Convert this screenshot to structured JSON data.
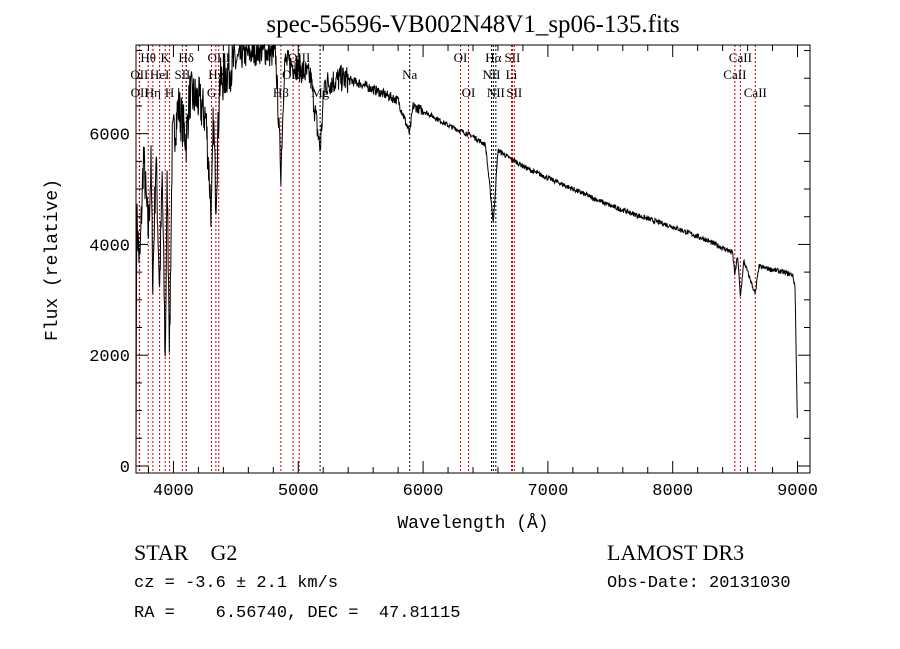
{
  "chart_data": {
    "type": "line",
    "title": "spec-56596-VB002N48V1_sp06-135.fits",
    "xlabel": "Wavelength (Å)",
    "ylabel": "Flux (relative)",
    "xlim": [
      3700,
      9100
    ],
    "ylim": [
      0,
      7600
    ],
    "xticks": [
      4000,
      5000,
      6000,
      7000,
      8000,
      9000
    ],
    "xtick_labels": [
      "4000",
      "5000",
      "6000",
      "7000",
      "8000",
      "9000"
    ],
    "yticks": [
      0,
      2000,
      4000,
      6000
    ],
    "ytick_labels": [
      "0",
      "2000",
      "4000",
      "6000"
    ],
    "grid": false,
    "series": [
      {
        "name": "spectrum",
        "color": "#000000",
        "points": [
          [
            3700,
            0
          ],
          [
            3705,
            4500
          ],
          [
            3730,
            3600
          ],
          [
            3760,
            5600
          ],
          [
            3798,
            4200
          ],
          [
            3820,
            5400
          ],
          [
            3835,
            3300
          ],
          [
            3860,
            5600
          ],
          [
            3889,
            3200
          ],
          [
            3910,
            5200
          ],
          [
            3934,
            1900
          ],
          [
            3950,
            5200
          ],
          [
            3969,
            2100
          ],
          [
            3990,
            5800
          ],
          [
            4040,
            6500
          ],
          [
            4102,
            5900
          ],
          [
            4130,
            6700
          ],
          [
            4200,
            6600
          ],
          [
            4260,
            6300
          ],
          [
            4305,
            4500
          ],
          [
            4320,
            6300
          ],
          [
            4340,
            4800
          ],
          [
            4370,
            6900
          ],
          [
            4450,
            7200
          ],
          [
            4550,
            7400
          ],
          [
            4700,
            7500
          ],
          [
            4820,
            7400
          ],
          [
            4861,
            5300
          ],
          [
            4890,
            7300
          ],
          [
            5000,
            7200
          ],
          [
            5100,
            7000
          ],
          [
            5175,
            5700
          ],
          [
            5210,
            6900
          ],
          [
            5350,
            7000
          ],
          [
            5500,
            6900
          ],
          [
            5650,
            6750
          ],
          [
            5800,
            6600
          ],
          [
            5893,
            6000
          ],
          [
            5920,
            6500
          ],
          [
            6050,
            6350
          ],
          [
            6200,
            6150
          ],
          [
            6300,
            6050
          ],
          [
            6400,
            5950
          ],
          [
            6500,
            5800
          ],
          [
            6563,
            4400
          ],
          [
            6600,
            5700
          ],
          [
            6700,
            5550
          ],
          [
            6850,
            5350
          ],
          [
            7000,
            5200
          ],
          [
            7250,
            4950
          ],
          [
            7500,
            4700
          ],
          [
            7750,
            4500
          ],
          [
            8000,
            4320
          ],
          [
            8250,
            4100
          ],
          [
            8480,
            3850
          ],
          [
            8498,
            3450
          ],
          [
            8520,
            3800
          ],
          [
            8542,
            3050
          ],
          [
            8570,
            3700
          ],
          [
            8662,
            3100
          ],
          [
            8690,
            3600
          ],
          [
            8850,
            3520
          ],
          [
            8960,
            3450
          ],
          [
            8980,
            3250
          ],
          [
            9000,
            600
          ]
        ]
      }
    ],
    "line_markers": [
      {
        "label": "Hθ",
        "wavelength": 3798,
        "row": 1,
        "color": "#cc0000"
      },
      {
        "label": "K",
        "wavelength": 3934,
        "row": 1,
        "color": "#cc0000"
      },
      {
        "label": "Hδ",
        "wavelength": 4102,
        "row": 1,
        "color": "#000000"
      },
      {
        "label": "OIII",
        "wavelength": 4363,
        "row": 1,
        "color": "#cc0000"
      },
      {
        "label": "OIII",
        "wavelength": 5007,
        "row": 1,
        "color": "#cc0000"
      },
      {
        "label": "OI",
        "wavelength": 6300,
        "row": 1,
        "color": "#cc0000"
      },
      {
        "label": "Hα",
        "wavelength": 6563,
        "row": 1,
        "color": "#000000"
      },
      {
        "label": "SII",
        "wavelength": 6716,
        "row": 1,
        "color": "#cc0000"
      },
      {
        "label": "CaII",
        "wavelength": 8542,
        "row": 1,
        "color": "#cc0000"
      },
      {
        "label": "OII",
        "wavelength": 3727,
        "row": 2,
        "color": "#cc0000"
      },
      {
        "label": "HeI",
        "wavelength": 3889,
        "row": 2,
        "color": "#cc0000"
      },
      {
        "label": "SII",
        "wavelength": 4072,
        "row": 2,
        "color": "#cc0000"
      },
      {
        "label": "Hγ",
        "wavelength": 4340,
        "row": 2,
        "color": "#cc0000"
      },
      {
        "label": "OIII",
        "wavelength": 4959,
        "row": 2,
        "color": "#cc0000"
      },
      {
        "label": "Na",
        "wavelength": 5893,
        "row": 2,
        "color": "#000000"
      },
      {
        "label": "NII",
        "wavelength": 6548,
        "row": 2,
        "color": "#000000"
      },
      {
        "label": "Li",
        "wavelength": 6708,
        "row": 2,
        "color": "#cc0000"
      },
      {
        "label": "CaII",
        "wavelength": 8498,
        "row": 2,
        "color": "#cc0000"
      },
      {
        "label": "OII",
        "wavelength": 3729,
        "row": 3,
        "color": "#cc0000"
      },
      {
        "label": "Hη",
        "wavelength": 3835,
        "row": 3,
        "color": "#cc0000"
      },
      {
        "label": "H",
        "wavelength": 3969,
        "row": 3,
        "color": "#cc0000"
      },
      {
        "label": "G",
        "wavelength": 4305,
        "row": 3,
        "color": "#cc0000"
      },
      {
        "label": "Hβ",
        "wavelength": 4861,
        "row": 3,
        "color": "#cc0000"
      },
      {
        "label": "Mg",
        "wavelength": 5175,
        "row": 3,
        "color": "#000000"
      },
      {
        "label": "OI",
        "wavelength": 6364,
        "row": 3,
        "color": "#cc0000"
      },
      {
        "label": "NII",
        "wavelength": 6583,
        "row": 3,
        "color": "#000000"
      },
      {
        "label": "SII",
        "wavelength": 6731,
        "row": 3,
        "color": "#cc0000"
      },
      {
        "label": "CaII",
        "wavelength": 8662,
        "row": 3,
        "color": "#cc0000"
      }
    ]
  },
  "info": {
    "class": "STAR    G2",
    "cz": "cz = -3.6 ± 2.1 km/s",
    "coords": "RA =    6.56740, DEC =  47.81115",
    "survey": "LAMOST DR3",
    "obs_date": "Obs-Date: 20131030"
  }
}
